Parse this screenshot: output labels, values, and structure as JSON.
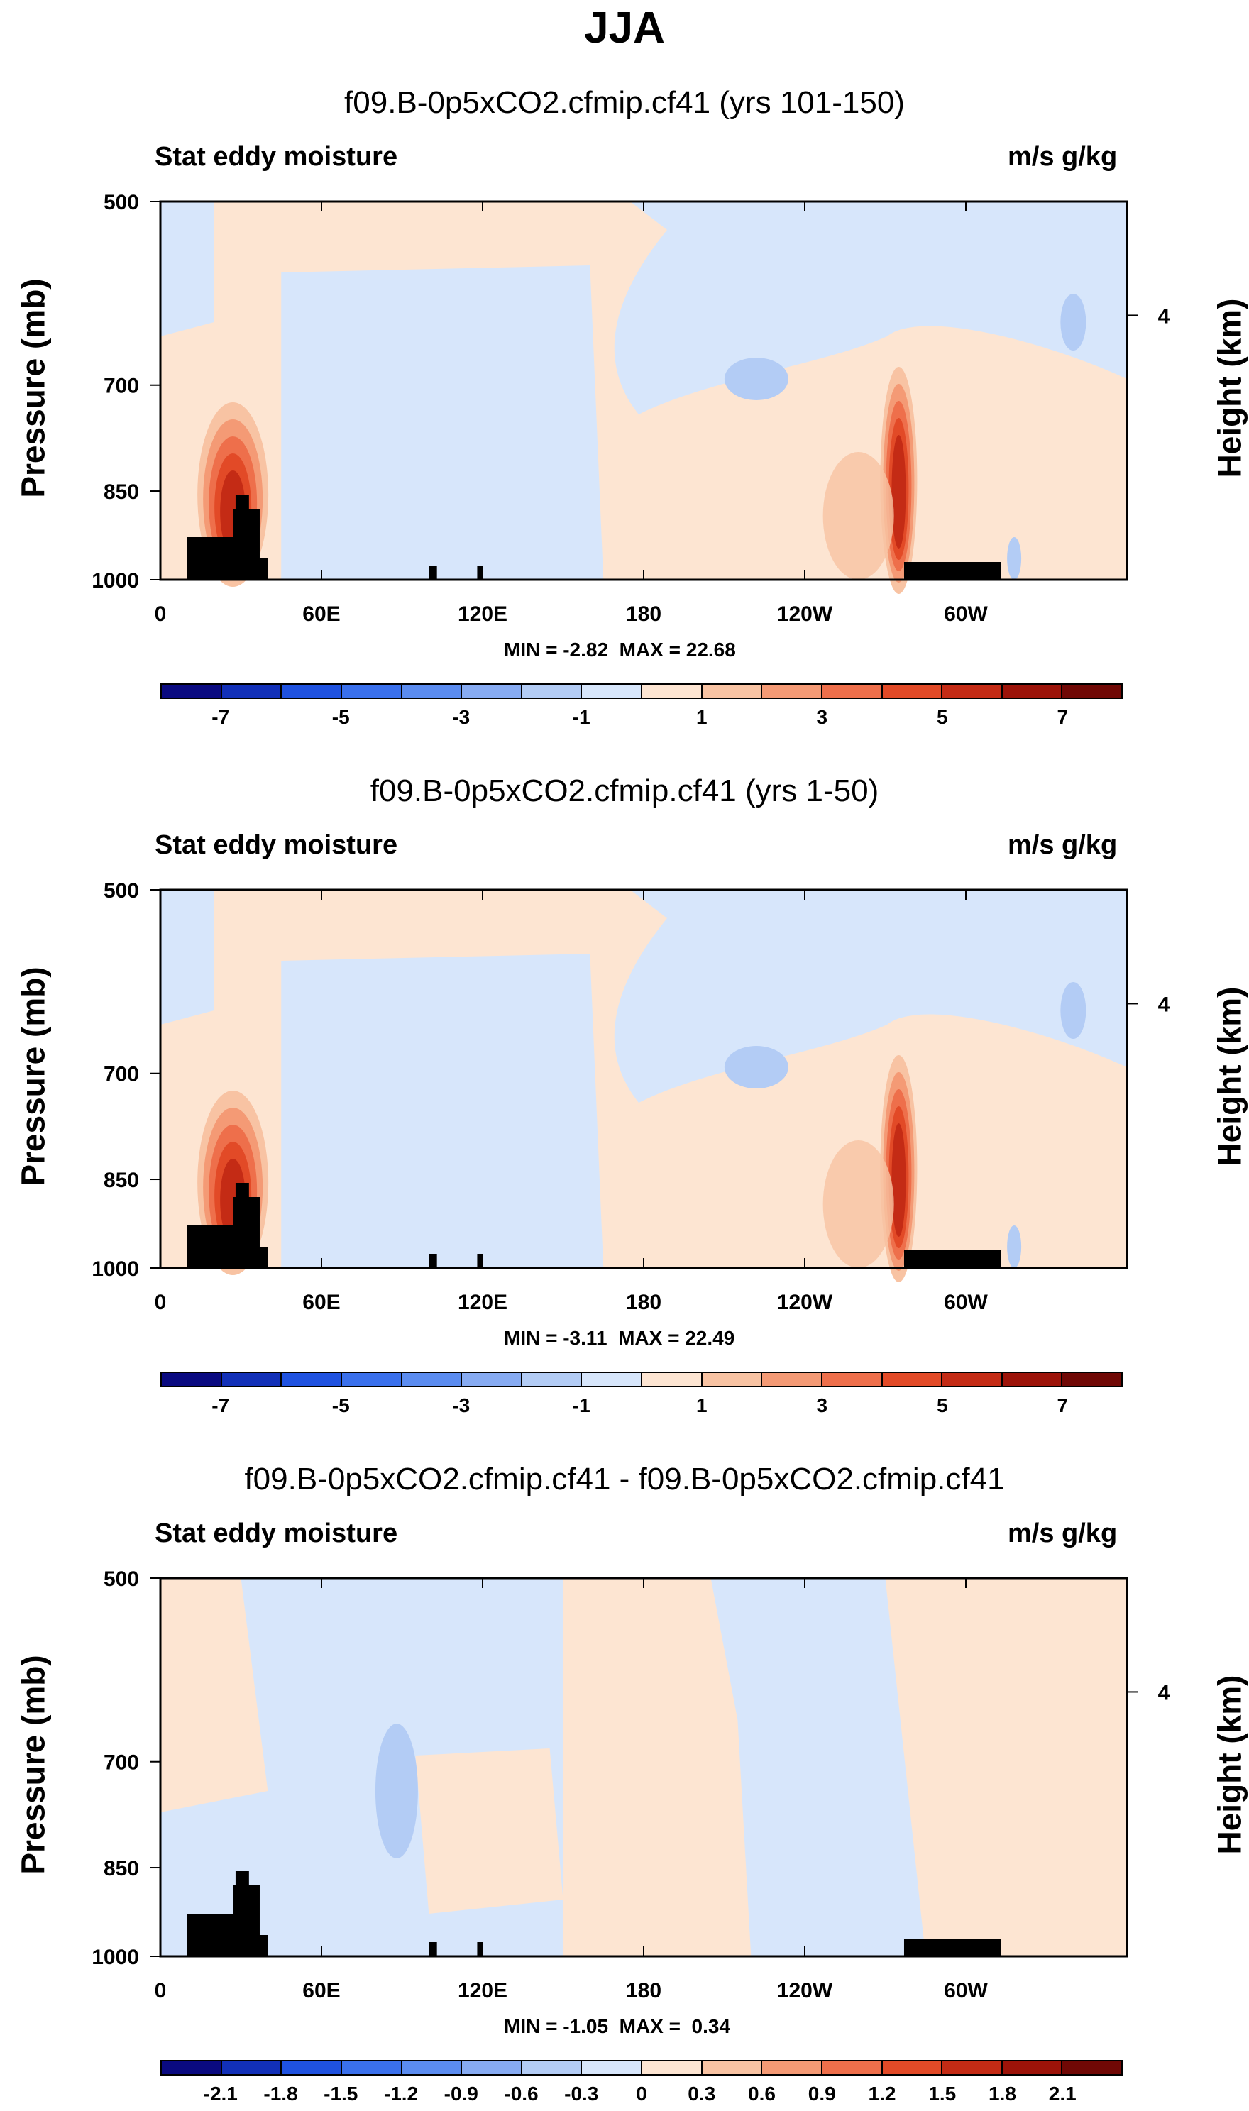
{
  "figure": {
    "title": "JJA",
    "panels": [
      {
        "title": "f09.B-0p5xCO2.cfmip.cf41 (yrs 101-150)",
        "left_label": "Stat eddy moisture",
        "right_label": "m/s g/kg",
        "y_axis_label": "Pressure (mb)",
        "y_right_label": "Height (km)",
        "stats": "MIN = -2.82  MAX = 22.68",
        "colorbar_labels": [
          "-7",
          "-5",
          "-3",
          "-1",
          "1",
          "3",
          "5",
          "7"
        ]
      },
      {
        "title": "f09.B-0p5xCO2.cfmip.cf41 (yrs 1-50)",
        "left_label": "Stat eddy moisture",
        "right_label": "m/s g/kg",
        "y_axis_label": "Pressure (mb)",
        "y_right_label": "Height (km)",
        "stats": "MIN = -3.11  MAX = 22.49",
        "colorbar_labels": [
          "-7",
          "-5",
          "-3",
          "-1",
          "1",
          "3",
          "5",
          "7"
        ]
      },
      {
        "title": "f09.B-0p5xCO2.cfmip.cf41 - f09.B-0p5xCO2.cfmip.cf41",
        "left_label": "Stat eddy moisture",
        "right_label": "m/s g/kg",
        "y_axis_label": "Pressure (mb)",
        "y_right_label": "Height (km)",
        "stats": "MIN = -1.05  MAX =  0.34",
        "colorbar_labels": [
          "-2.1",
          "-1.8",
          "-1.5",
          "-1.2",
          "-0.9",
          "-0.6",
          "-0.3",
          "0",
          "0.3",
          "0.6",
          "0.9",
          "1.2",
          "1.5",
          "1.8",
          "2.1"
        ]
      }
    ]
  },
  "chart_data": {
    "type": "heatmap",
    "x_ticks": [
      "0",
      "60E",
      "120E",
      "180",
      "120W",
      "60W"
    ],
    "x_tick_values": [
      0,
      60,
      120,
      180,
      240,
      300
    ],
    "xlim": [
      0,
      360
    ],
    "y_ticks": [
      "500",
      "700",
      "850",
      "1000"
    ],
    "y_tick_values": [
      500,
      700,
      850,
      1000
    ],
    "ylim": [
      1000,
      500
    ],
    "height_ticks": [
      "4"
    ],
    "height_tick_values": [
      4
    ],
    "colors_full": [
      "#0a0a80",
      "#1230b8",
      "#1f52e0",
      "#3a70ec",
      "#5b8cf0",
      "#87abf2",
      "#b3ccf5",
      "#d7e6fb",
      "#fde5d2",
      "#f8c3a3",
      "#f49a75",
      "#ee6f4b",
      "#e24a27",
      "#c42b15",
      "#9c1309",
      "#700805"
    ],
    "colors_diff": [
      "#0a0a80",
      "#1230b8",
      "#1f52e0",
      "#3a70ec",
      "#5b8cf0",
      "#87abf2",
      "#b3ccf5",
      "#d7e6fb",
      "#fde5d2",
      "#f8c3a3",
      "#f49a75",
      "#ee6f4b",
      "#e24a27",
      "#c42b15",
      "#9c1309",
      "#700805"
    ]
  }
}
